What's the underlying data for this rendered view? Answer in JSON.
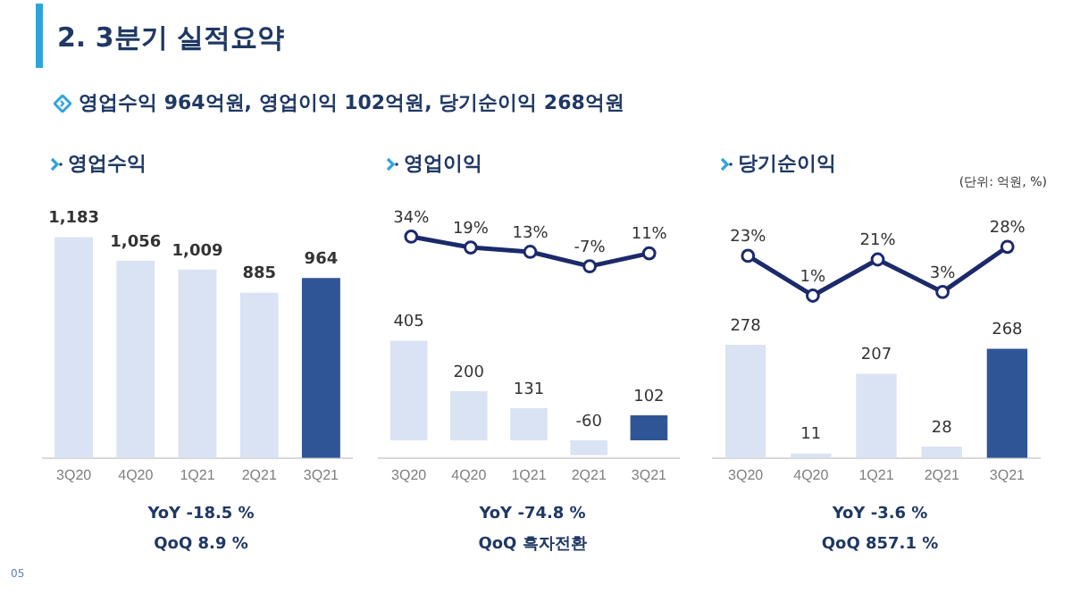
{
  "chart_data": [
    {
      "type": "bar",
      "title": "영업수익",
      "categories": [
        "3Q20",
        "4Q20",
        "1Q21",
        "2Q21",
        "3Q21"
      ],
      "series": [
        {
          "color": "#dae3f3",
          "colors": [
            "#dae3f3",
            "#dae3f3",
            "#dae3f3",
            "#dae3f3",
            "#2f5597"
          ],
          "values": [
            1183,
            1056,
            1009,
            885,
            964
          ],
          "value_labels": [
            "1,183",
            "1,056",
            "1,009",
            "885",
            "964"
          ]
        }
      ],
      "annotations": [
        "2. 3분기 실적요약",
        "영업수익 964억원, 영업이익 102억원, 당기순이익 268억원",
        "05",
        "YoY  -18.5 %",
        "QoQ  8.9 %"
      ]
    },
    {
      "type": "line",
      "title": "영업이익",
      "categories": [
        null,
        null,
        null,
        null,
        null
      ],
      "marker": "circle",
      "tick_labels": false,
      "series": [
        {
          "color": "#1b2a6b",
          "values": [
            34,
            19,
            13,
            -7,
            11
          ],
          "value_labels": [
            "34%",
            "19%",
            "13%",
            "-7%",
            "11%"
          ]
        }
      ]
    },
    {
      "type": "bar",
      "categories": [
        "3Q20",
        "4Q20",
        "1Q21",
        "2Q21",
        "3Q21"
      ],
      "series": [
        {
          "color": "#dae3f3",
          "colors": [
            "#dae3f3",
            "#dae3f3",
            "#dae3f3",
            "#dae3f3",
            "#2f5597"
          ],
          "values": [
            405,
            200,
            131,
            -60,
            102
          ],
          "value_labels": [
            "405",
            "200",
            "131",
            "-60",
            "102"
          ]
        }
      ],
      "annotations": [
        "YoY  -74.8 %",
        "QoQ  흑자전환"
      ]
    },
    {
      "type": "line",
      "title": "당기순이익",
      "categories": [
        null,
        null,
        null,
        null,
        null
      ],
      "marker": "circle",
      "tick_labels": false,
      "series": [
        {
          "color": "#1b2a6b",
          "values": [
            23,
            1,
            21,
            3,
            28
          ],
          "value_labels": [
            "23%",
            "1%",
            "21%",
            "3%",
            "28%"
          ]
        }
      ],
      "annotations": [
        "(단위: 억원, %)"
      ]
    },
    {
      "type": "bar",
      "categories": [
        "3Q20",
        "4Q20",
        "1Q21",
        "2Q21",
        "3Q21"
      ],
      "series": [
        {
          "color": "#dae3f3",
          "colors": [
            "#dae3f3",
            "#dae3f3",
            "#dae3f3",
            "#dae3f3",
            "#2f5597"
          ],
          "values": [
            278,
            11,
            207,
            28,
            268
          ],
          "value_labels": [
            "278",
            "11",
            "207",
            "28",
            "268"
          ]
        }
      ],
      "annotations": [
        "YoY  -3.6 %",
        "QoQ  857.1 %"
      ]
    }
  ]
}
